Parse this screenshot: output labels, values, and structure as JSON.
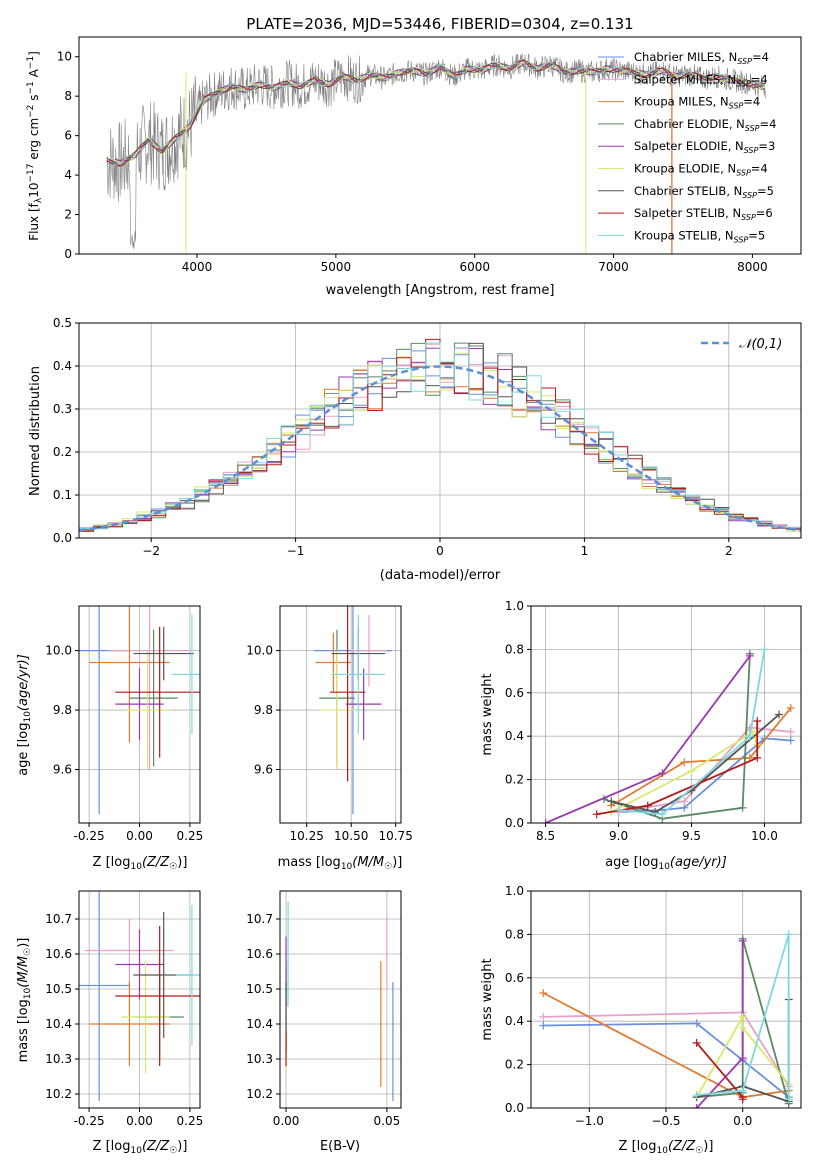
{
  "title": "PLATE=2036, MJD=53446, FIBERID=0304, z=0.131",
  "legend_spectrum": [
    {
      "name": "Chabrier MILES",
      "nssp": "4",
      "color": "#6a8fdc"
    },
    {
      "name": "Salpeter MILES",
      "nssp": "4",
      "color": "#e8a0c8"
    },
    {
      "name": "Kroupa MILES",
      "nssp": "4",
      "color": "#e07b30"
    },
    {
      "name": "Chabrier ELODIE",
      "nssp": "4",
      "color": "#5a8a60"
    },
    {
      "name": "Salpeter ELODIE",
      "nssp": "3",
      "color": "#9a3aae"
    },
    {
      "name": "Kroupa ELODIE",
      "nssp": "4",
      "color": "#d8e86a"
    },
    {
      "name": "Chabrier STELIB",
      "nssp": "5",
      "color": "#555555"
    },
    {
      "name": "Salpeter STELIB",
      "nssp": "6",
      "color": "#b51a1a"
    },
    {
      "name": "Kroupa STELIB",
      "nssp": "5",
      "color": "#7fd8e0"
    }
  ],
  "chart_data": [
    {
      "id": "spectrum",
      "type": "line",
      "title": "PLATE=2036, MJD=53446, FIBERID=0304, z=0.131",
      "xlabel": "wavelength [Angstrom, rest frame]",
      "ylabel_main": "Flux [f",
      "ylabel_sub": "λ",
      "ylabel_rest": "10",
      "ylabel_units": "erg cm",
      "ylabel_s": " s",
      "ylabel_a": " A",
      "ylabel_exp1": "−17",
      "ylabel_exp2": "−2",
      "ylabel_exp3": "−1",
      "ylabel_exp4": "−1",
      "xlim": [
        3150,
        8350
      ],
      "ylim": [
        0,
        11
      ],
      "xticks": [
        4000,
        5000,
        6000,
        7000,
        8000
      ],
      "yticks": [
        0,
        2,
        4,
        6,
        8,
        10
      ],
      "data_color": "#808080",
      "model_x": [
        3350,
        3450,
        3550,
        3650,
        3750,
        3850,
        3950,
        4050,
        4150,
        4250,
        4350,
        4450,
        4550,
        4650,
        4750,
        4850,
        4950,
        5050,
        5150,
        5250,
        5350,
        5450,
        5550,
        5650,
        5750,
        5850,
        5950,
        6050,
        6150,
        6250,
        6350,
        6450,
        6550,
        6650,
        6750,
        6850,
        6950,
        7050,
        7150,
        7250,
        7350,
        7450,
        7550,
        7650,
        7750,
        7850,
        7950,
        8050
      ],
      "model_y": [
        4.7,
        4.6,
        5.0,
        5.8,
        5.2,
        5.9,
        6.5,
        7.8,
        8.2,
        8.5,
        8.3,
        8.6,
        8.4,
        8.7,
        8.5,
        8.8,
        8.6,
        9.0,
        8.8,
        9.1,
        8.9,
        9.2,
        9.3,
        9.1,
        9.5,
        9.0,
        9.4,
        9.3,
        9.6,
        9.4,
        9.7,
        9.4,
        9.6,
        9.2,
        9.3,
        9.2,
        9.4,
        9.3,
        9.2,
        9.1,
        9.3,
        9.0,
        9.1,
        8.9,
        9.0,
        8.8,
        8.7,
        8.5
      ]
    },
    {
      "id": "residuals",
      "type": "histogram",
      "xlabel": "(data-model)/error",
      "ylabel": "Normed distribution",
      "xlim": [
        -2.5,
        2.5
      ],
      "ylim": [
        0,
        0.5
      ],
      "xticks": [
        -2,
        -1,
        0,
        1,
        2
      ],
      "yticks": [
        0.0,
        0.1,
        0.2,
        0.3,
        0.4,
        0.5
      ],
      "legend": "𝒩(0,1)",
      "bin_width": 0.1
    },
    {
      "id": "age_vs_Z",
      "type": "errorbar",
      "xlabel_main": "Z [log",
      "xlabel_sub": "10",
      "xlabel_rest": "(Z/Z",
      "xlabel_sun": "☉",
      "xlabel_close": ")]",
      "ylabel_main": "age  [log",
      "ylabel_sub": "10",
      "ylabel_rest": "(age/yr)]",
      "xlim": [
        -0.3,
        0.3
      ],
      "ylim": [
        9.42,
        10.15
      ],
      "xticks": [
        "-0.25",
        "0.00",
        "0.25"
      ],
      "yticks": [
        "9.6",
        "9.8",
        "10.0"
      ],
      "points": [
        {
          "x": -0.2,
          "y": 10.0,
          "xerr": 0.15,
          "yerr": 0.55,
          "c": "#6a8fdc"
        },
        {
          "x": 0.05,
          "y": 10.0,
          "xerr": 0.2,
          "yerr": 0.4,
          "c": "#e8a0c8"
        },
        {
          "x": -0.05,
          "y": 9.96,
          "xerr": 0.2,
          "yerr": 0.27,
          "c": "#e07b30"
        },
        {
          "x": 0.07,
          "y": 9.84,
          "xerr": 0.12,
          "yerr": 0.23,
          "c": "#5a8a60"
        },
        {
          "x": 0.0,
          "y": 9.82,
          "xerr": 0.12,
          "yerr": 0.12,
          "c": "#9a3aae"
        },
        {
          "x": 0.04,
          "y": 9.8,
          "xerr": 0.11,
          "yerr": 0.2,
          "c": "#d8e86a"
        },
        {
          "x": 0.12,
          "y": 9.99,
          "xerr": 0.15,
          "yerr": 0.09,
          "c": "#555555"
        },
        {
          "x": 0.1,
          "y": 9.86,
          "xerr": 0.22,
          "yerr": 0.22,
          "c": "#b51a1a"
        },
        {
          "x": 0.26,
          "y": 9.92,
          "xerr": 0.1,
          "yerr": 0.2,
          "c": "#7fd8e0"
        }
      ]
    },
    {
      "id": "age_vs_mass",
      "type": "errorbar",
      "xlabel_main": "mass [log",
      "xlabel_sub": "10",
      "xlabel_rest": "(M/M",
      "xlabel_sun": "☉",
      "xlabel_close": ")]",
      "xlim": [
        10.1,
        10.78
      ],
      "ylim": [
        9.42,
        10.15
      ],
      "xticks": [
        "10.25",
        "10.50",
        "10.75"
      ],
      "yticks": [
        "9.6",
        "9.8",
        "10.0"
      ],
      "points": [
        {
          "x": 10.51,
          "y": 10.0,
          "xerr": 0.22,
          "yerr": 0.55,
          "c": "#6a8fdc"
        },
        {
          "x": 10.6,
          "y": 10.0,
          "xerr": 0.1,
          "yerr": 0.12,
          "c": "#e8a0c8"
        },
        {
          "x": 10.4,
          "y": 9.96,
          "xerr": 0.1,
          "yerr": 0.1,
          "c": "#e07b30"
        },
        {
          "x": 10.42,
          "y": 9.84,
          "xerr": 0.1,
          "yerr": 0.23,
          "c": "#5a8a60"
        },
        {
          "x": 10.57,
          "y": 9.82,
          "xerr": 0.1,
          "yerr": 0.12,
          "c": "#9a3aae"
        },
        {
          "x": 10.42,
          "y": 9.8,
          "xerr": 0.1,
          "yerr": 0.2,
          "c": "#d8e86a"
        },
        {
          "x": 10.54,
          "y": 9.99,
          "xerr": 0.15,
          "yerr": 0.09,
          "c": "#555555"
        },
        {
          "x": 10.48,
          "y": 9.86,
          "xerr": 0.1,
          "yerr": 0.3,
          "c": "#b51a1a"
        },
        {
          "x": 10.54,
          "y": 9.92,
          "xerr": 0.15,
          "yerr": 0.2,
          "c": "#7fd8e0"
        }
      ]
    },
    {
      "id": "weight_vs_age",
      "type": "line",
      "xlabel_main": "age  [log",
      "xlabel_sub": "10",
      "xlabel_rest": "(age/yr)]",
      "ylabel": "mass weight",
      "xlim": [
        8.4,
        10.25
      ],
      "ylim": [
        0,
        1
      ],
      "xticks": [
        "8.5",
        "9.0",
        "9.5",
        "10.0"
      ],
      "yticks": [
        "0.0",
        "0.2",
        "0.4",
        "0.6",
        "0.8",
        "1.0"
      ],
      "series": [
        {
          "c": "#6a8fdc",
          "x": [
            9.0,
            9.3,
            9.45,
            10.0,
            10.18
          ],
          "y": [
            0.05,
            0.06,
            0.07,
            0.39,
            0.38
          ]
        },
        {
          "c": "#e8a0c8",
          "x": [
            9.0,
            9.45,
            9.9,
            10.18
          ],
          "y": [
            0.05,
            0.1,
            0.44,
            0.42
          ]
        },
        {
          "c": "#e07b30",
          "x": [
            8.95,
            9.45,
            9.9,
            10.18
          ],
          "y": [
            0.08,
            0.28,
            0.3,
            0.53
          ]
        },
        {
          "c": "#5a8a60",
          "x": [
            8.9,
            9.3,
            9.85,
            9.9
          ],
          "y": [
            0.11,
            0.02,
            0.07,
            0.78
          ]
        },
        {
          "c": "#9a3aae",
          "x": [
            8.5,
            9.3,
            9.9
          ],
          "y": [
            0.0,
            0.23,
            0.77
          ]
        },
        {
          "c": "#d8e86a",
          "x": [
            8.95,
            9.5,
            9.92,
            9.95
          ],
          "y": [
            0.05,
            0.24,
            0.42,
            0.36
          ]
        },
        {
          "c": "#555555",
          "x": [
            8.95,
            9.25,
            9.5,
            10.1
          ],
          "y": [
            0.1,
            0.05,
            0.15,
            0.5
          ]
        },
        {
          "c": "#b51a1a",
          "x": [
            8.85,
            9.2,
            9.95,
            9.95
          ],
          "y": [
            0.04,
            0.08,
            0.3,
            0.47
          ]
        },
        {
          "c": "#7fd8e0",
          "x": [
            9.0,
            9.3,
            9.9,
            10.0
          ],
          "y": [
            0.06,
            0.04,
            0.4,
            0.8
          ]
        }
      ]
    },
    {
      "id": "mass_vs_Z",
      "type": "errorbar",
      "ylabel_main": "mass [log",
      "ylabel_sub": "10",
      "ylabel_rest": "(M/M",
      "ylabel_sun": "☉",
      "ylabel_close": ")]",
      "xlabel_main": "Z [log",
      "xlabel_sub": "10",
      "xlabel_rest": "(Z/Z",
      "xlabel_sun": "☉",
      "xlabel_close": ")]",
      "xlim": [
        -0.3,
        0.3
      ],
      "ylim": [
        10.16,
        10.78
      ],
      "xticks": [
        "-0.25",
        "0.00",
        "0.25"
      ],
      "yticks": [
        "10.2",
        "10.3",
        "10.4",
        "10.5",
        "10.6",
        "10.7"
      ],
      "points": [
        {
          "x": -0.2,
          "y": 10.51,
          "xerr": 0.15,
          "yerr": 0.33,
          "c": "#6a8fdc"
        },
        {
          "x": -0.05,
          "y": 10.61,
          "xerr": 0.22,
          "yerr": 0.09,
          "c": "#e8a0c8"
        },
        {
          "x": -0.05,
          "y": 10.4,
          "xerr": 0.2,
          "yerr": 0.12,
          "c": "#e07b30"
        },
        {
          "x": 0.1,
          "y": 10.42,
          "xerr": 0.12,
          "yerr": 0.12,
          "c": "#5a8a60"
        },
        {
          "x": 0.0,
          "y": 10.57,
          "xerr": 0.12,
          "yerr": 0.1,
          "c": "#9a3aae"
        },
        {
          "x": 0.03,
          "y": 10.42,
          "xerr": 0.12,
          "yerr": 0.16,
          "c": "#d8e86a"
        },
        {
          "x": 0.12,
          "y": 10.54,
          "xerr": 0.15,
          "yerr": 0.18,
          "c": "#555555"
        },
        {
          "x": 0.1,
          "y": 10.48,
          "xerr": 0.22,
          "yerr": 0.2,
          "c": "#b51a1a"
        },
        {
          "x": 0.26,
          "y": 10.54,
          "xerr": 0.08,
          "yerr": 0.2,
          "c": "#7fd8e0"
        }
      ]
    },
    {
      "id": "mass_vs_ebv",
      "type": "errorbar",
      "xlabel": "E(B-V)",
      "xlim": [
        -0.003,
        0.057
      ],
      "ylim": [
        10.16,
        10.78
      ],
      "xticks": [
        "0.00",
        "0.05"
      ],
      "yticks": [
        "10.2",
        "10.3",
        "10.4",
        "10.5",
        "10.6",
        "10.7"
      ],
      "points": [
        {
          "x": 0.053,
          "y": 10.35,
          "yerr": 0.17,
          "c": "#6a8fdc"
        },
        {
          "x": 0.05,
          "y": 10.6,
          "yerr": 0.1,
          "c": "#e8a0c8"
        },
        {
          "x": 0.047,
          "y": 10.4,
          "yerr": 0.18,
          "c": "#e07b30"
        },
        {
          "x": 0.0,
          "y": 10.48,
          "yerr": 0.1,
          "c": "#5a8a60"
        },
        {
          "x": 0.0,
          "y": 10.55,
          "yerr": 0.1,
          "c": "#9a3aae"
        },
        {
          "x": 0.0,
          "y": 10.35,
          "yerr": 0.08,
          "c": "#d8e86a"
        },
        {
          "x": 0.0,
          "y": 10.42,
          "yerr": 0.1,
          "c": "#555555"
        },
        {
          "x": 0.0,
          "y": 10.33,
          "yerr": 0.05,
          "c": "#b51a1a"
        },
        {
          "x": 0.001,
          "y": 10.6,
          "yerr": 0.15,
          "c": "#7fd8e0"
        }
      ]
    },
    {
      "id": "weight_vs_Z",
      "type": "line",
      "xlabel_main": "Z [log",
      "xlabel_sub": "10",
      "xlabel_rest": "(Z/Z",
      "xlabel_sun": "☉",
      "xlabel_close": ")]",
      "ylabel": "mass weight",
      "xlim": [
        -1.38,
        0.38
      ],
      "ylim": [
        0,
        1
      ],
      "xticks": [
        "−1.0",
        "−0.5",
        "0.0"
      ],
      "yticks": [
        "0.0",
        "0.2",
        "0.4",
        "0.6",
        "0.8",
        "1.0"
      ],
      "series": [
        {
          "c": "#6a8fdc",
          "x": [
            -1.3,
            -0.3,
            0.0,
            0.3
          ],
          "y": [
            0.38,
            0.39,
            0.22,
            0.05
          ]
        },
        {
          "c": "#e8a0c8",
          "x": [
            -1.3,
            0.0,
            0.3
          ],
          "y": [
            0.42,
            0.44,
            0.1
          ]
        },
        {
          "c": "#e07b30",
          "x": [
            -1.3,
            0.0,
            0.3
          ],
          "y": [
            0.53,
            0.05,
            0.08
          ]
        },
        {
          "c": "#5a8a60",
          "x": [
            -0.3,
            0.0,
            0.0,
            0.3
          ],
          "y": [
            0.05,
            0.07,
            0.78,
            0.02
          ]
        },
        {
          "c": "#9a3aae",
          "x": [
            -0.3,
            0.0,
            0.0
          ],
          "y": [
            0.0,
            0.23,
            0.77
          ]
        },
        {
          "c": "#d8e86a",
          "x": [
            -0.3,
            0.0,
            0.0,
            0.3
          ],
          "y": [
            0.05,
            0.42,
            0.37,
            0.11
          ]
        },
        {
          "c": "#555555",
          "x": [
            -0.3,
            0.0,
            0.3,
            0.3
          ],
          "y": [
            0.05,
            0.1,
            0.03,
            0.5
          ]
        },
        {
          "c": "#b51a1a",
          "x": [
            -0.3,
            0.0,
            0.0
          ],
          "y": [
            0.3,
            0.05,
            0.04
          ]
        },
        {
          "c": "#7fd8e0",
          "x": [
            -0.3,
            0.0,
            0.3,
            0.3
          ],
          "y": [
            0.06,
            0.08,
            0.8,
            0.04
          ]
        }
      ]
    }
  ]
}
